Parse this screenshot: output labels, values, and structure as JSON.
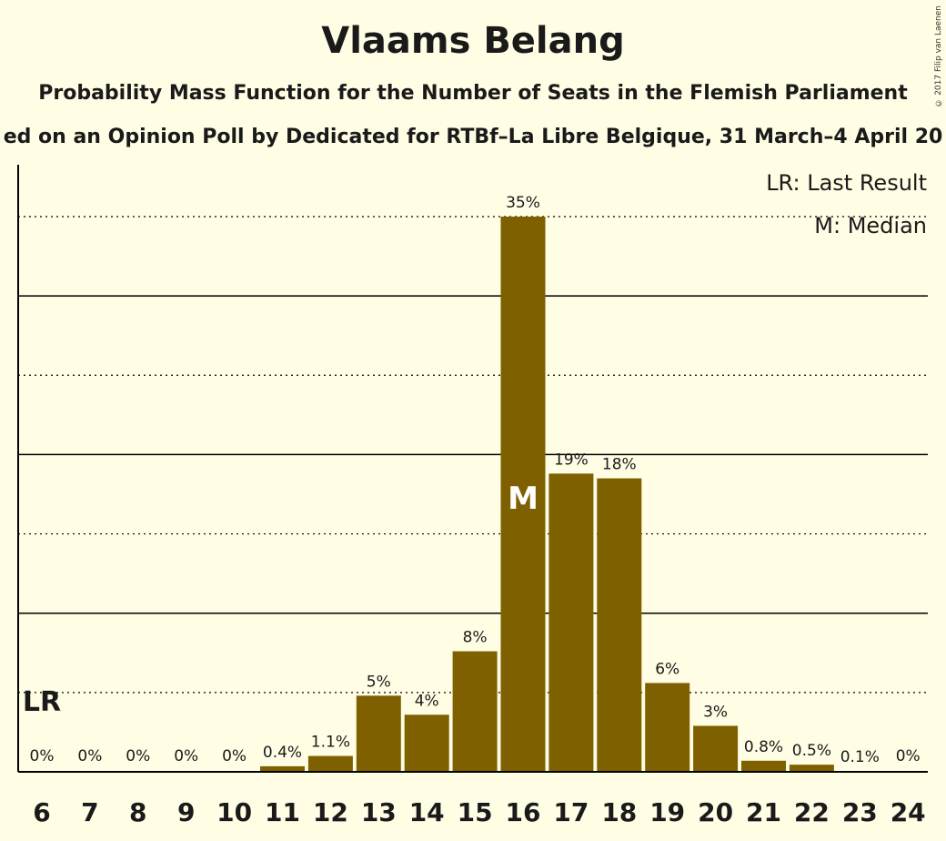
{
  "header": {
    "title": "Vlaams Belang",
    "subtitle": "Probability Mass Function for the Number of Seats in the Flemish Parliament",
    "subtitle2": "ed on an Opinion Poll by Dedicated for RTBf–La Libre Belgique, 31 March–4 April 20",
    "copyright": "© 2017 Filip van Laenen"
  },
  "chart_data": {
    "type": "bar",
    "categories": [
      "6",
      "7",
      "8",
      "9",
      "10",
      "11",
      "12",
      "13",
      "14",
      "15",
      "16",
      "17",
      "18",
      "19",
      "20",
      "21",
      "22",
      "23",
      "24"
    ],
    "values": [
      0,
      0,
      0,
      0,
      0,
      0.4,
      1.1,
      5,
      4,
      8,
      35,
      19,
      18,
      6,
      3,
      0.8,
      0.5,
      0.1,
      0
    ],
    "value_labels": [
      "0%",
      "0%",
      "0%",
      "0%",
      "0%",
      "0.4%",
      "1.1%",
      "5%",
      "4%",
      "8%",
      "35%",
      "19%",
      "18%",
      "6%",
      "3%",
      "0.8%",
      "0.5%",
      "0.1%",
      "0%"
    ],
    "plot_values": [
      0,
      0,
      0,
      0,
      0,
      0.35,
      1.0,
      4.8,
      3.6,
      7.6,
      35.0,
      18.8,
      18.5,
      5.6,
      2.9,
      0.7,
      0.45,
      0.05,
      0
    ],
    "ylim": [
      0,
      38
    ],
    "gridlines_solid": [
      10,
      20,
      30
    ],
    "gridlines_dotted": [
      5,
      15,
      25,
      35
    ],
    "last_result_category": "6",
    "median_category": "16",
    "bar_color": "#7f6000",
    "legend": {
      "last_result": "LR: Last Result",
      "median": "M: Median",
      "lr_marker": "LR",
      "median_marker": "M",
      "position": "top-right"
    }
  }
}
